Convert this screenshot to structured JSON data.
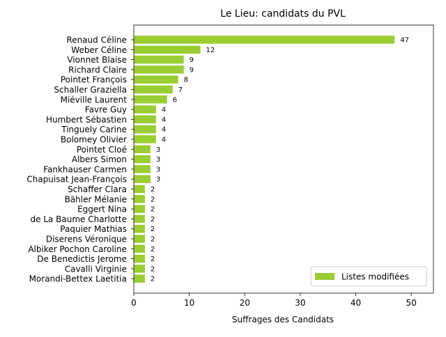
{
  "chart_data": {
    "type": "bar",
    "orientation": "horizontal",
    "title": "Le Lieu: candidats du PVL",
    "xlabel": "Suffrages des Candidats",
    "ylabel": "",
    "xlim": [
      0,
      54
    ],
    "xticks": [
      0,
      10,
      20,
      30,
      40,
      50
    ],
    "grid": false,
    "legend": {
      "position": "lower-right",
      "entries": [
        "Listes modifiées"
      ]
    },
    "bar_color": "#9acd32",
    "categories": [
      "Renaud Céline",
      "Weber Céline",
      "Vionnet Blaise",
      "Richard Claire",
      "Pointet François",
      "Schaller Graziella",
      "Miéville Laurent",
      "Favre Guy",
      "Humbert Sébastien",
      "Tinguely Carine",
      "Bolomey Olivier",
      "Pointet Cloé",
      "Albers Simon",
      "Fankhauser Carmen",
      "Chapuisat Jean-François",
      "Schaffer Clara",
      "Bähler Mélanie",
      "Eggert Nina",
      "de La Baume Charlotte",
      "Paquier Mathias",
      "Diserens Véronique",
      "Albiker Pochon Caroline",
      "De Benedictis Jerome",
      "Cavalli Virginie",
      "Morandi-Bettex Laetitia"
    ],
    "series": [
      {
        "name": "Listes modifiées",
        "values": [
          47,
          12,
          9,
          9,
          8,
          7,
          6,
          4,
          4,
          4,
          4,
          3,
          3,
          3,
          3,
          2,
          2,
          2,
          2,
          2,
          2,
          2,
          2,
          2,
          2
        ]
      }
    ]
  }
}
